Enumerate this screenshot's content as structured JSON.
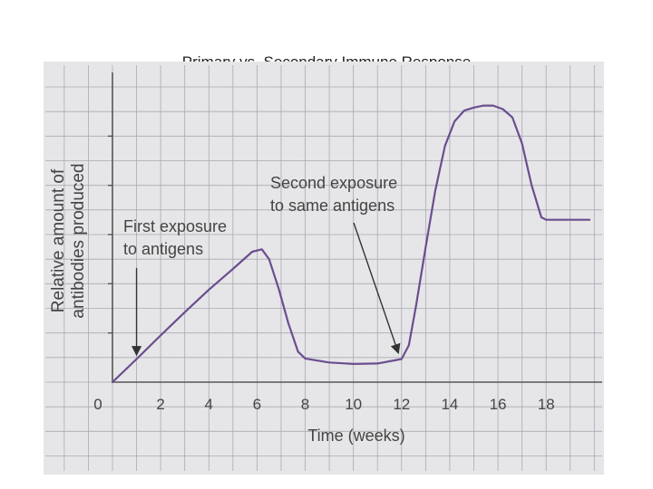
{
  "slide": {
    "title": "Primary vs. Secondary Immune Response"
  },
  "chart_data": {
    "type": "line",
    "title": "Primary vs. Secondary Immune Response",
    "xlabel": "Time (weeks)",
    "ylabel_line1": "Relative amount of",
    "ylabel_line2": "antibodies produced",
    "x_ticks": [
      "0",
      "2",
      "4",
      "6",
      "8",
      "10",
      "12",
      "14",
      "16",
      "18"
    ],
    "xlim": [
      0,
      19.8
    ],
    "ylim": [
      0,
      6
    ],
    "grid": true,
    "series": [
      {
        "x": [
          0,
          1,
          2,
          3,
          4,
          5,
          5.8,
          6.2,
          6.5,
          6.9,
          7.3,
          7.7,
          8,
          9,
          10,
          11,
          12,
          12.3,
          12.6,
          13,
          13.4,
          13.8,
          14.2,
          14.6,
          15,
          15.4,
          15.8,
          16.2,
          16.6,
          17,
          17.4,
          17.8,
          18,
          18.5,
          19,
          19.8
        ],
        "values": [
          0,
          0.47,
          0.95,
          1.42,
          1.88,
          2.3,
          2.65,
          2.7,
          2.5,
          1.9,
          1.2,
          0.62,
          0.48,
          0.4,
          0.37,
          0.38,
          0.47,
          0.75,
          1.55,
          2.75,
          3.9,
          4.8,
          5.3,
          5.52,
          5.58,
          5.62,
          5.62,
          5.55,
          5.38,
          4.85,
          4.0,
          3.35,
          3.3,
          3.3,
          3.3,
          3.3
        ]
      }
    ],
    "annotations": [
      {
        "line1": "First exposure",
        "line2": "to antigens",
        "x": 1,
        "y": 0.47
      },
      {
        "line1": "Second exposure",
        "line2": "to same antigens",
        "x": 12,
        "y": 0.47
      }
    ],
    "line_color": "#6a4e8e"
  }
}
